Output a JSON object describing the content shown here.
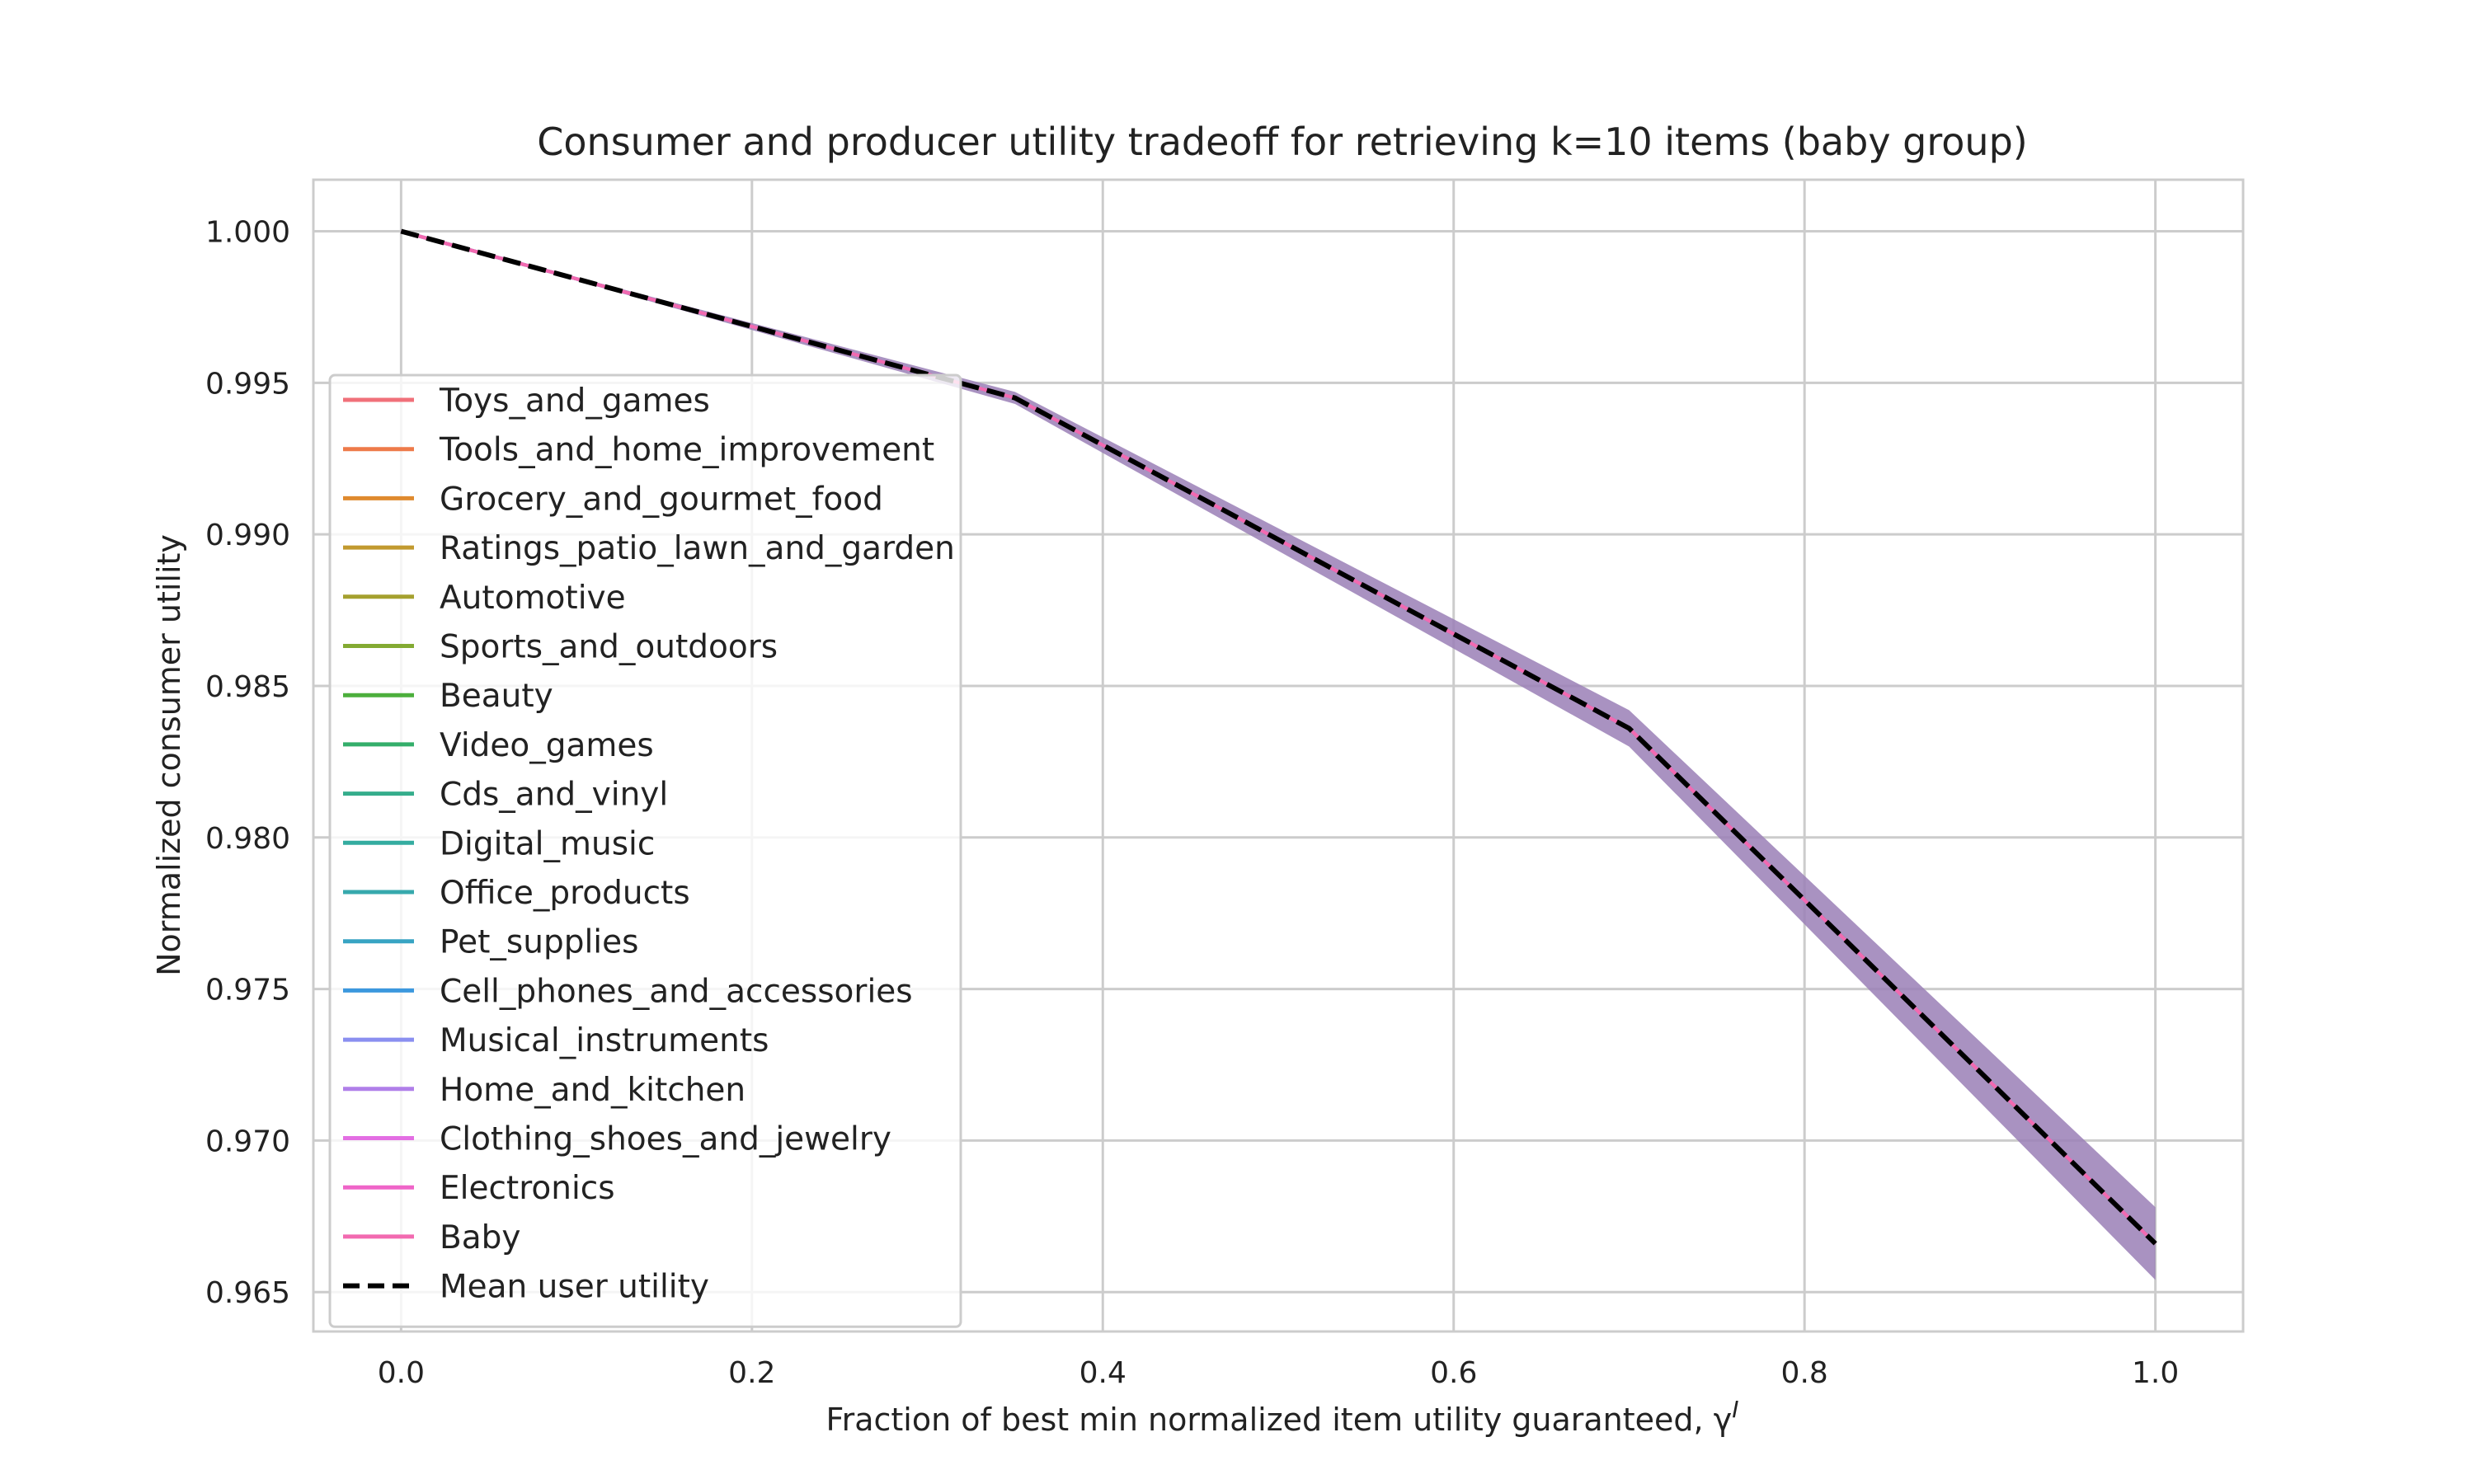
{
  "chart_data": {
    "type": "line",
    "title": "Consumer and producer utility tradeoff for retrieving k=10 items (baby group)",
    "xlabel": "Fraction of best min normalized item utility guaranteed, γ",
    "xlabel_superscript": "I",
    "ylabel": "Normalized consumer utility",
    "xlim": [
      -0.05,
      1.05
    ],
    "ylim": [
      0.9637,
      1.0017
    ],
    "x_ticks": [
      0.0,
      0.2,
      0.4,
      0.6,
      0.8,
      1.0
    ],
    "x_tick_labels": [
      "0.0",
      "0.2",
      "0.4",
      "0.6",
      "0.8",
      "1.0"
    ],
    "y_ticks": [
      0.965,
      0.97,
      0.975,
      0.98,
      0.985,
      0.99,
      0.995,
      1.0
    ],
    "y_tick_labels": [
      "0.965",
      "0.970",
      "0.975",
      "0.980",
      "0.985",
      "0.990",
      "0.995",
      "1.000"
    ],
    "grid": true,
    "legend_position": "left",
    "x": [
      0.0,
      0.35,
      0.7,
      1.0
    ],
    "mean_series": {
      "name": "Mean user utility",
      "values": [
        1.0,
        0.9945,
        0.9836,
        0.9666
      ],
      "lower": [
        1.0,
        0.9943,
        0.983,
        0.9654
      ],
      "upper": [
        1.0,
        0.9947,
        0.9842,
        0.9678
      ],
      "color": "#000000",
      "dash": true
    },
    "band_color": "#9a7fb6",
    "series": [
      {
        "name": "Toys_and_games",
        "color": "#f0707a"
      },
      {
        "name": "Tools_and_home_improvement",
        "color": "#ee7a4a"
      },
      {
        "name": "Grocery_and_gourmet_food",
        "color": "#df8a2e"
      },
      {
        "name": "Ratings_patio_lawn_and_garden",
        "color": "#c29a2f"
      },
      {
        "name": "Automotive",
        "color": "#a5a12f"
      },
      {
        "name": "Sports_and_outdoors",
        "color": "#83aa32"
      },
      {
        "name": "Beauty",
        "color": "#4caf3c"
      },
      {
        "name": "Video_games",
        "color": "#34ae6a"
      },
      {
        "name": "Cds_and_vinyl",
        "color": "#35ad8c"
      },
      {
        "name": "Digital_music",
        "color": "#34aca0"
      },
      {
        "name": "Office_products",
        "color": "#37a9ad"
      },
      {
        "name": "Pet_supplies",
        "color": "#38a4c3"
      },
      {
        "name": "Cell_phones_and_accessories",
        "color": "#3c98de"
      },
      {
        "name": "Musical_instruments",
        "color": "#8a8ff0"
      },
      {
        "name": "Home_and_kitchen",
        "color": "#b07fe9"
      },
      {
        "name": "Clothing_shoes_and_jewelry",
        "color": "#e36ee3"
      },
      {
        "name": "Electronics",
        "color": "#ef65c8"
      },
      {
        "name": "Baby",
        "color": "#f26ab0"
      }
    ]
  }
}
